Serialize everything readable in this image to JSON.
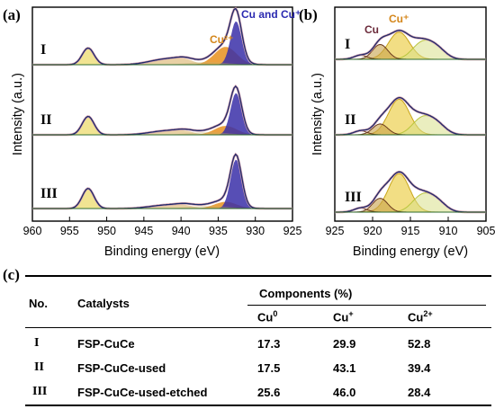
{
  "panels": {
    "a_label": "(a)",
    "b_label": "(b)",
    "c_label": "(c)"
  },
  "chart_data": [
    {
      "type": "line",
      "panel": "(a)",
      "xlabel": "Binding energy (eV)",
      "ylabel": "Intensity (a.u.)",
      "xlim": [
        960,
        925
      ],
      "x_ticks": [
        "960",
        "955",
        "950",
        "945",
        "940",
        "935",
        "930",
        "925"
      ],
      "reversed_x": true,
      "annotations": [
        "Cu and Cu⁺",
        "Cu²⁺"
      ],
      "series": [
        {
          "name": "I",
          "x": [
            958,
            952.5,
            947,
            943.5,
            940.5,
            936,
            934,
            932.6,
            931,
            928
          ],
          "y": [
            0.02,
            0.3,
            0.04,
            0.09,
            0.07,
            0.12,
            0.32,
            0.78,
            0.18,
            0.02
          ]
        },
        {
          "name": "II",
          "x": [
            958,
            952.5,
            947,
            943.5,
            940.5,
            936,
            934,
            932.6,
            931,
            928
          ],
          "y": [
            0.02,
            0.33,
            0.04,
            0.07,
            0.05,
            0.09,
            0.22,
            0.78,
            0.12,
            0.02
          ]
        },
        {
          "name": "III",
          "x": [
            958,
            952.5,
            947,
            943.5,
            940.5,
            936,
            934,
            932.6,
            931,
            928
          ],
          "y": [
            0.02,
            0.36,
            0.04,
            0.06,
            0.04,
            0.07,
            0.16,
            0.88,
            0.1,
            0.02
          ]
        }
      ],
      "colors": {
        "envelope": "#1f2a6a",
        "fit_cu": "#3a2fa8",
        "fit_cu2": "#e8901f",
        "raw": "#d3a0ae"
      }
    },
    {
      "type": "line",
      "panel": "(b)",
      "xlabel": "Binding energy (eV)",
      "ylabel": "Intensity (a.u.)",
      "xlim": [
        925,
        905
      ],
      "x_ticks": [
        "925",
        "920",
        "915",
        "910",
        "905"
      ],
      "reversed_x": true,
      "annotations": [
        "Cu",
        "Cu⁺"
      ],
      "series": [
        {
          "name": "I",
          "x": [
            924,
            921.5,
            919,
            916.5,
            913.5,
            912,
            907
          ],
          "y": [
            0.03,
            0.1,
            0.4,
            0.62,
            0.36,
            0.25,
            0.04
          ]
        },
        {
          "name": "II",
          "x": [
            924,
            921.5,
            919,
            916.5,
            913.5,
            912,
            907
          ],
          "y": [
            0.03,
            0.08,
            0.3,
            0.78,
            0.35,
            0.22,
            0.04
          ]
        },
        {
          "name": "III",
          "x": [
            924,
            921.5,
            919,
            916.5,
            913.5,
            912,
            907
          ],
          "y": [
            0.03,
            0.1,
            0.36,
            0.82,
            0.38,
            0.24,
            0.04
          ]
        }
      ],
      "colors": {
        "envelope": "#1f2a6a",
        "cu0": "#6b3a1e",
        "cuplus": "#e8c21f",
        "fit2": "#b8c43a",
        "baseline": "#2e6b2e"
      }
    },
    {
      "type": "table",
      "panel": "(c)",
      "headers": [
        "No.",
        "Catalysts",
        "Components (%)"
      ],
      "subheaders": [
        "Cu⁰",
        "Cu⁺",
        "Cu²⁺"
      ],
      "rows": [
        {
          "no": "I",
          "catalyst": "FSP-CuCe",
          "cu0": "17.3",
          "cuplus": "29.9",
          "cu2plus": "52.8"
        },
        {
          "no": "II",
          "catalyst": "FSP-CuCe-used",
          "cu0": "17.5",
          "cuplus": "43.1",
          "cu2plus": "39.4"
        },
        {
          "no": "III",
          "catalyst": "FSP-CuCe-used-etched",
          "cu0": "25.6",
          "cuplus": "46.0",
          "cu2plus": "28.4"
        }
      ]
    }
  ],
  "table": {
    "col_no": "No.",
    "col_catalysts": "Catalysts",
    "col_components": "Components (%)",
    "sub_cu0_base": "Cu",
    "sub_cu0_sup": "0",
    "sub_cuplus_base": "Cu",
    "sub_cuplus_sup": "+",
    "sub_cu2_base": "Cu",
    "sub_cu2_sup": "2+",
    "rows": [
      {
        "no": "I",
        "catalyst": "FSP-CuCe",
        "cu0": "17.3",
        "cuplus": "29.9",
        "cu2plus": "52.8"
      },
      {
        "no": "II",
        "catalyst": "FSP-CuCe-used",
        "cu0": "17.5",
        "cuplus": "43.1",
        "cu2plus": "39.4"
      },
      {
        "no": "III",
        "catalyst": "FSP-CuCe-used-etched",
        "cu0": "25.6",
        "cuplus": "46.0",
        "cu2plus": "28.4"
      }
    ]
  }
}
